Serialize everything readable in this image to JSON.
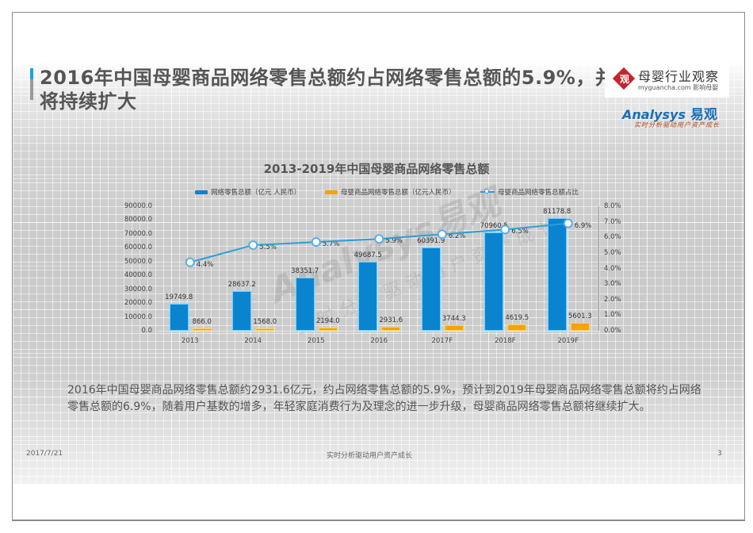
{
  "slide": {
    "title": "2016年中国母婴商品网络零售总额约占网络零售总额的5.9%，并将持续扩大",
    "body": "2016年中国母婴商品网络零售总额约2931.6亿元，约占网络零售总额的5.9%，预计到2019年母婴商品网络零售总额将约占网络零售总额的6.9%，随着用户基数的增多，年轻家庭消费行为及理念的进一步升级，母婴商品网络零售总额将继续扩大。",
    "footer_date": "2017/7/21",
    "footer_center": "实时分析驱动用户资产成长",
    "page_number": "3"
  },
  "logos": {
    "badge_char": "观",
    "brand_cn": "母婴行业观察",
    "brand_url": "myguancha.com 影响母婴",
    "analysys_en": "Analysys",
    "analysys_cn": "易观",
    "analysys_slogan": "实时分析驱动用户资产成长"
  },
  "watermark": {
    "en": "Analysys易观",
    "cn": "实时分析驱动用户资产成长"
  },
  "colors": {
    "total_bar": "#0a84cf",
    "baby_bar": "#f5a300",
    "ratio_line": "#2a9fd8",
    "accent": "#1aa0e8"
  },
  "chart_data": {
    "type": "bar",
    "title": "2013-2019年中国母婴商品网络零售总额",
    "categories": [
      "2013",
      "2014",
      "2015",
      "2016",
      "2017F",
      "2018F",
      "2019F"
    ],
    "series": [
      {
        "name": "网络零售总额（亿元 人民币）",
        "type": "bar",
        "axis": "left",
        "values": [
          19749.8,
          28637.2,
          38351.7,
          49687.5,
          60391.9,
          70960.5,
          81178.8
        ],
        "labels": [
          "19749.8",
          "28637.2",
          "38351.7",
          "49687.5",
          "60391.9",
          "70960.5",
          "81178.8"
        ]
      },
      {
        "name": "母婴商品网络零售总额（亿元人民币）",
        "type": "bar",
        "axis": "left",
        "values": [
          866.0,
          1568.0,
          2194.0,
          2931.6,
          3744.3,
          4619.5,
          5601.3
        ],
        "labels": [
          "866.0",
          "1568.0",
          "2194.0",
          "2931.6",
          "3744.3",
          "4619.5",
          "5601.3"
        ]
      },
      {
        "name": "母婴商品网络零售总额占比",
        "type": "line",
        "axis": "right",
        "values": [
          4.4,
          5.5,
          5.7,
          5.9,
          6.2,
          6.5,
          6.9
        ],
        "labels": [
          "4.4%",
          "5.5%",
          "5.7%",
          "5.9%",
          "6.2%",
          "6.5%",
          "6.9%"
        ]
      }
    ],
    "y_left": {
      "ticks": [
        "90000.0",
        "80000.0",
        "70000.0",
        "60000.0",
        "50000.0",
        "40000.0",
        "30000.0",
        "20000.0",
        "10000.0",
        "0.0"
      ],
      "range": [
        0,
        90000
      ]
    },
    "y_right": {
      "ticks": [
        "8.0%",
        "7.0%",
        "6.0%",
        "5.0%",
        "4.0%",
        "3.0%",
        "2.0%",
        "1.0%",
        "0.0%"
      ],
      "range": [
        0,
        8
      ]
    },
    "legend_position": "top",
    "grid": false
  }
}
